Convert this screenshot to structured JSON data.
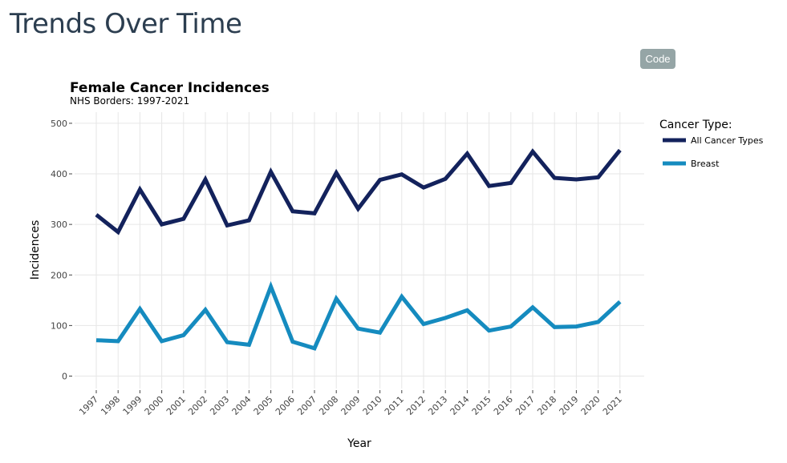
{
  "page": {
    "heading": "Trends Over Time",
    "code_button_label": "Code"
  },
  "colors": {
    "heading": "#2c3e50",
    "code_button_bg": "#95a5a6",
    "grid": "#e6e6e6",
    "axis_text": "#444444"
  },
  "chart_data": {
    "type": "line",
    "title": "Female Cancer Incidences",
    "subtitle": "NHS Borders: 1997-2021",
    "xlabel": "Year",
    "ylabel": "Incidences",
    "ylim": [
      0,
      500
    ],
    "yticks": [
      0,
      100,
      200,
      300,
      400,
      500
    ],
    "grid": true,
    "legend_title": "Cancer Type:",
    "legend_placement": "right",
    "x": [
      "1997",
      "1998",
      "1999",
      "2000",
      "2001",
      "2002",
      "2003",
      "2004",
      "2005",
      "2006",
      "2007",
      "2008",
      "2009",
      "2010",
      "2011",
      "2012",
      "2013",
      "2014",
      "2015",
      "2016",
      "2017",
      "2018",
      "2019",
      "2020",
      "2021"
    ],
    "series": [
      {
        "name": "All Cancer Types",
        "color": "#13225c",
        "values": [
          319,
          285,
          369,
          300,
          311,
          389,
          298,
          308,
          404,
          326,
          322,
          402,
          331,
          388,
          399,
          373,
          390,
          440,
          376,
          382,
          444,
          392,
          389,
          393,
          447
        ]
      },
      {
        "name": "Breast",
        "color": "#158bbf",
        "values": [
          71,
          69,
          133,
          69,
          81,
          131,
          67,
          62,
          177,
          68,
          55,
          153,
          94,
          86,
          157,
          103,
          115,
          130,
          90,
          98,
          136,
          97,
          98,
          107,
          147
        ]
      }
    ]
  }
}
